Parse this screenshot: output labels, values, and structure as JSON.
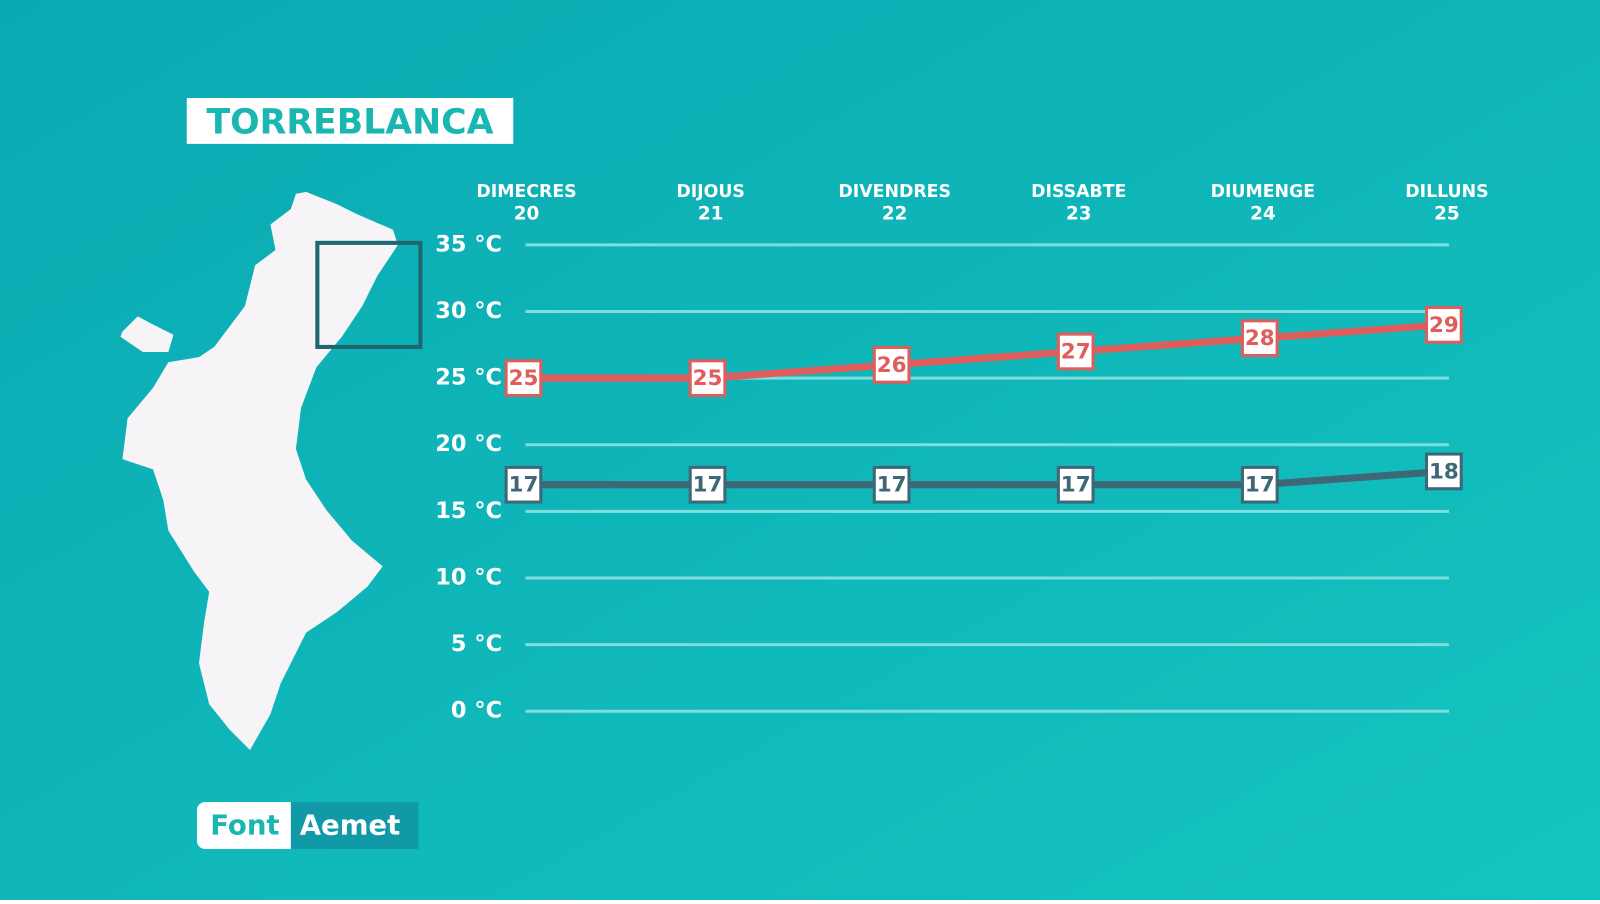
{
  "title": "TORREBLANCA",
  "source": {
    "label": "Font",
    "name": "Aemet"
  },
  "chart_data": {
    "type": "line",
    "categories": [
      "DIMECRES",
      "DIJOUS",
      "DIVENDRES",
      "DISSABTE",
      "DIUMENGE",
      "DILLUNS"
    ],
    "dates": [
      "20",
      "21",
      "22",
      "23",
      "24",
      "25"
    ],
    "series": [
      {
        "color": "#df5d5b",
        "values": [
          25,
          25,
          26,
          27,
          28,
          29
        ]
      },
      {
        "color": "#3e6777",
        "values": [
          17,
          17,
          17,
          17,
          17,
          18
        ]
      }
    ],
    "ylim": [
      0,
      35
    ],
    "yticks": [
      {
        "value": 0,
        "label": "0 °C"
      },
      {
        "value": 5,
        "label": "5 °C"
      },
      {
        "value": 10,
        "label": "10 °C"
      },
      {
        "value": 15,
        "label": "15 °C"
      },
      {
        "value": 20,
        "label": "20 °C"
      },
      {
        "value": 25,
        "label": "25 °C"
      },
      {
        "value": 30,
        "label": "30 °C"
      },
      {
        "value": 35,
        "label": "35 °C"
      }
    ],
    "grid": true
  }
}
